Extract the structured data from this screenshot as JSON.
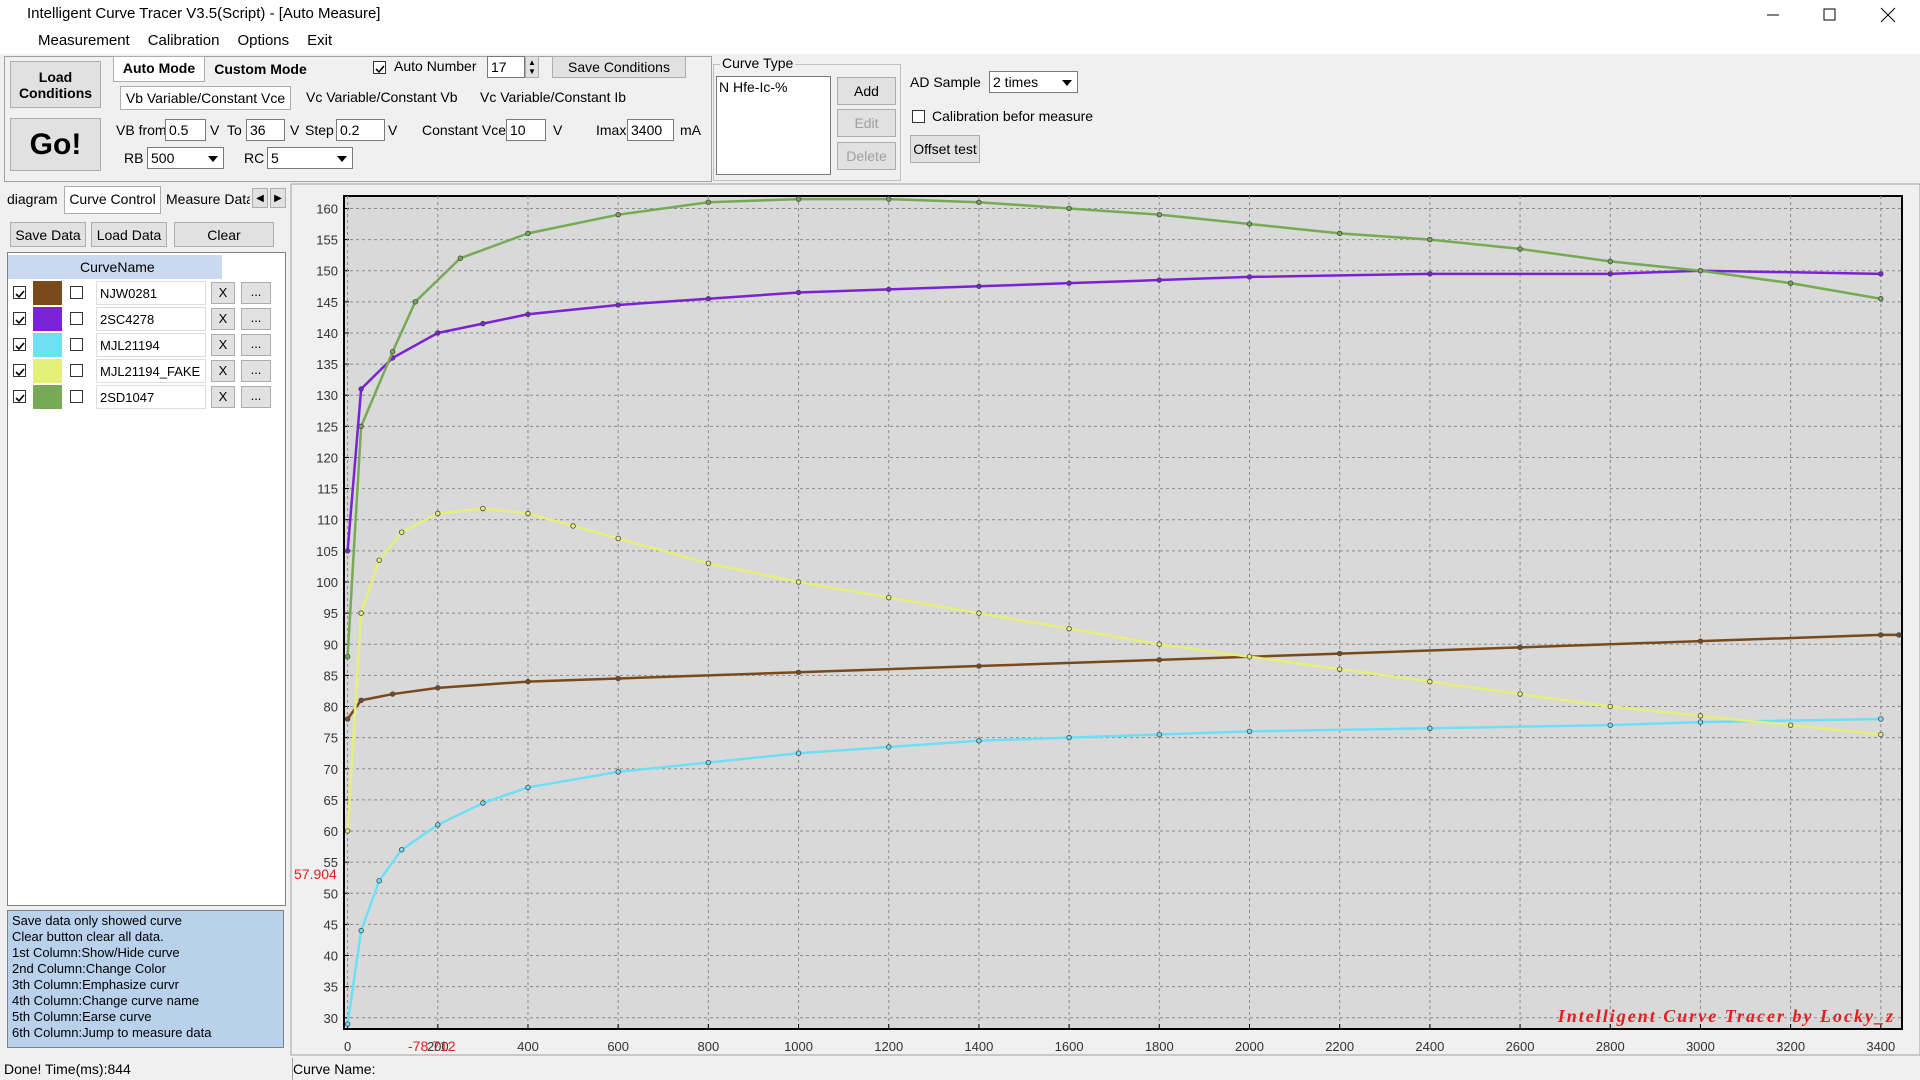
{
  "window": {
    "title": "Intelligent Curve Tracer V3.5(Script) - [Auto Measure]",
    "menus": [
      "Measurement",
      "Calibration",
      "Options",
      "Exit"
    ]
  },
  "controls": {
    "load_conditions": "Load Conditions",
    "go": "Go!",
    "tabs": [
      "Auto Mode",
      "Custom Mode"
    ],
    "auto_number": "Auto Number",
    "auto_number_value": "17",
    "save_conditions": "Save Conditions",
    "sub_tabs": [
      "Vb Variable/Constant Vce",
      "Vc Variable/Constant Vb",
      "Vc Variable/Constant Ib"
    ],
    "vb_from_label": "VB from",
    "vb_from": "0.5",
    "volt": "V",
    "to_label": "To",
    "to": "36",
    "step_label": "Step",
    "step": "0.2",
    "constant_vce_label": "Constant Vce",
    "constant_vce": "10",
    "imax_label": "Imax",
    "imax": "3400",
    "ma": "mA",
    "rb_label": "RB",
    "rb": "500",
    "rc_label": "RC",
    "rc": "5",
    "curve_type": {
      "title": "Curve Type",
      "items": [
        "N Hfe-Ic-%"
      ],
      "buttons": [
        "Add",
        "Edit",
        "Delete"
      ]
    },
    "ad_sample_label": "AD Sample",
    "ad_sample": "2 times",
    "calibration": "Calibration befor measure",
    "offset_test": "Offset test"
  },
  "left_panel": {
    "tabs": [
      "diagram",
      "Curve Control",
      "Measure Data"
    ],
    "buttons": [
      "Save Data",
      "Load Data",
      "Clear"
    ],
    "table_header": "CurveName",
    "erase": "X",
    "jump": "..."
  },
  "help": [
    "Save data only showed curve",
    "Clear button clear all data.",
    "1st Column:Show/Hide curve",
    "2nd Column:Change Color",
    "3th Column:Emphasize curvr",
    "4th Column:Change curve name",
    "5th Column:Earse curve",
    "6th Column:Jump to measure data"
  ],
  "status": {
    "time": "Done!  Time(ms):844",
    "curve_name": "Curve Name:"
  },
  "chart_data": {
    "type": "line",
    "xlim": [
      -8,
      3447
    ],
    "ylim": [
      28.2,
      162
    ],
    "grid": true,
    "xticks": [
      0,
      200,
      400,
      600,
      800,
      1000,
      1200,
      1400,
      1600,
      1800,
      2000,
      2200,
      2400,
      2600,
      2800,
      3000,
      3200,
      3400
    ],
    "yticks": [
      30,
      35,
      40,
      45,
      50,
      55,
      60,
      65,
      70,
      75,
      80,
      85,
      90,
      95,
      100,
      105,
      110,
      115,
      120,
      125,
      130,
      135,
      140,
      145,
      150,
      155,
      160
    ],
    "cursor_y": "57.904",
    "cursor_x": "-78.712",
    "watermark": "Intelligent Curve Tracer by Locky_z",
    "series": [
      {
        "name": "NJW0281",
        "color": "#7a4a1c",
        "x": [
          0,
          30,
          100,
          200,
          400,
          600,
          1000,
          1400,
          1800,
          2200,
          2600,
          3000,
          3400,
          3440
        ],
        "values": [
          78,
          81,
          82,
          83,
          84,
          84.5,
          85.5,
          86.5,
          87.5,
          88.5,
          89.5,
          90.5,
          91.5,
          91.5
        ]
      },
      {
        "name": "2SC4278",
        "color": "#7b22d4",
        "x": [
          0,
          30,
          100,
          200,
          300,
          400,
          600,
          800,
          1000,
          1200,
          1400,
          1600,
          1800,
          2000,
          2400,
          2800,
          3000,
          3400
        ],
        "values": [
          105,
          131,
          136,
          140,
          141.5,
          143,
          144.5,
          145.5,
          146.5,
          147,
          147.5,
          148,
          148.5,
          149,
          149.5,
          149.5,
          150,
          149.5
        ]
      },
      {
        "name": "MJL21194",
        "color": "#6ee0f5",
        "x": [
          0,
          30,
          70,
          120,
          200,
          300,
          400,
          600,
          800,
          1000,
          1200,
          1400,
          1600,
          1800,
          2000,
          2400,
          2800,
          3000,
          3400
        ],
        "values": [
          29,
          44,
          52,
          57,
          61,
          64.5,
          67,
          69.5,
          71,
          72.5,
          73.5,
          74.5,
          75,
          75.5,
          76,
          76.5,
          77,
          77.5,
          78
        ]
      },
      {
        "name": "MJL21194_FAKE",
        "color": "#e4f07a",
        "x": [
          0,
          30,
          70,
          120,
          200,
          300,
          400,
          500,
          600,
          800,
          1000,
          1200,
          1400,
          1600,
          1800,
          2000,
          2200,
          2400,
          2600,
          2800,
          3000,
          3200,
          3400
        ],
        "values": [
          60,
          95,
          103.5,
          108,
          111,
          111.8,
          111,
          109,
          107,
          103,
          100,
          97.5,
          95,
          92.5,
          90,
          88,
          86,
          84,
          82,
          80,
          78.5,
          77,
          75.5
        ]
      },
      {
        "name": "2SD1047",
        "color": "#76aa55",
        "x": [
          0,
          30,
          100,
          150,
          250,
          400,
          600,
          800,
          1000,
          1200,
          1400,
          1600,
          1800,
          2000,
          2200,
          2400,
          2600,
          2800,
          3000,
          3200,
          3400
        ],
        "values": [
          88,
          125,
          137,
          145,
          152,
          156,
          159,
          161,
          161.5,
          161.5,
          161,
          160,
          159,
          157.5,
          156,
          155,
          153.5,
          151.5,
          150,
          148,
          145.5
        ]
      }
    ]
  }
}
